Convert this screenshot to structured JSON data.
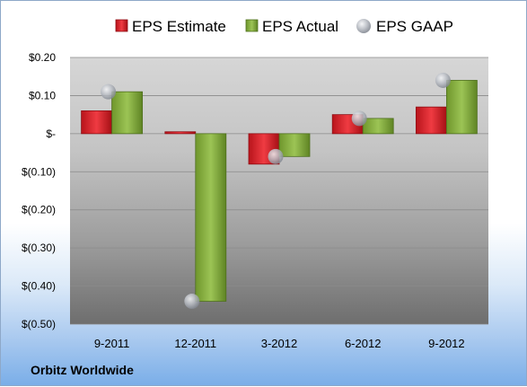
{
  "company": "Orbitz Worldwide",
  "colors": {
    "estimate": "#e0262e",
    "actual": "#8ab340",
    "gaap": "#b5b9c0"
  },
  "legend": [
    {
      "key": "estimate",
      "label": "EPS Estimate",
      "icon": "red-bar-swatch"
    },
    {
      "key": "actual",
      "label": "EPS Actual",
      "icon": "green-bar-swatch"
    },
    {
      "key": "gaap",
      "label": "EPS GAAP",
      "icon": "gray-sphere-marker"
    }
  ],
  "chart_data": {
    "type": "bar",
    "categories": [
      "9-2011",
      "12-2011",
      "3-2012",
      "6-2012",
      "9-2012"
    ],
    "series": [
      {
        "name": "EPS Estimate",
        "key": "estimate",
        "values": [
          0.06,
          0.005,
          -0.08,
          0.05,
          0.07
        ]
      },
      {
        "name": "EPS Actual",
        "key": "actual",
        "values": [
          0.11,
          -0.44,
          -0.06,
          0.04,
          0.14
        ]
      },
      {
        "name": "EPS GAAP",
        "key": "gaap",
        "type": "scatter",
        "values": [
          0.11,
          -0.44,
          -0.06,
          0.04,
          0.14
        ]
      }
    ],
    "y_ticks": [
      0.2,
      0.1,
      0,
      -0.1,
      -0.2,
      -0.3,
      -0.4,
      -0.5
    ],
    "y_tick_labels": [
      "$0.20",
      "$0.10",
      "$-",
      "$(0.10)",
      "$(0.20)",
      "$(0.30)",
      "$(0.40)",
      "$(0.50)"
    ],
    "ylim": [
      -0.5,
      0.2
    ],
    "grid": true,
    "legend_position": "top"
  }
}
